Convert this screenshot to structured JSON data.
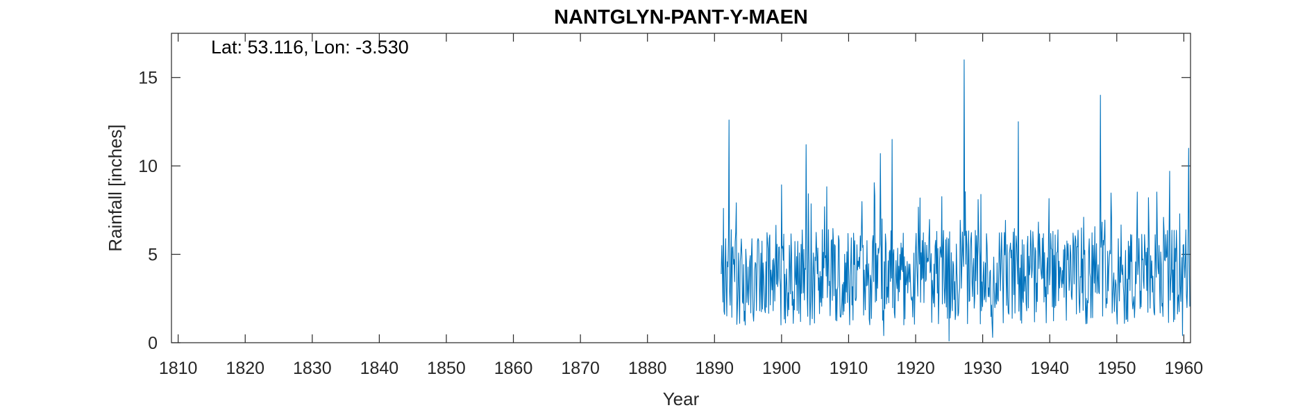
{
  "chart_data": {
    "type": "line",
    "title": "NANTGLYN-PANT-Y-MAEN",
    "annotation": "Lat: 53.116, Lon: -3.530",
    "xlabel": "Year",
    "ylabel": "Rainfall [inches]",
    "xlim": [
      1809,
      1961
    ],
    "ylim": [
      0,
      17.5
    ],
    "xticks": [
      1810,
      1820,
      1830,
      1840,
      1850,
      1860,
      1870,
      1880,
      1890,
      1900,
      1910,
      1920,
      1930,
      1940,
      1950,
      1960
    ],
    "yticks": [
      0,
      5,
      10,
      15
    ],
    "grid": false,
    "series": [
      {
        "color": "#0072bd",
        "data_start": 1891.0,
        "data_end": 1960.92,
        "step": 0.0833,
        "note_points": [
          [
            1891.1,
            5.5
          ],
          [
            1891.2,
            4.2
          ],
          [
            1891.3,
            7.6
          ],
          [
            1891.5,
            1.6
          ],
          [
            1892.2,
            12.6
          ],
          [
            1894.6,
            1.0
          ],
          [
            1903.7,
            11.2
          ],
          [
            1914.7,
            10.7
          ],
          [
            1915.2,
            0.4
          ],
          [
            1916.5,
            11.5
          ],
          [
            1925.0,
            0.1
          ],
          [
            1927.2,
            16.0
          ],
          [
            1931.5,
            0.3
          ],
          [
            1935.3,
            12.5
          ],
          [
            1947.6,
            14.0
          ],
          [
            1957.9,
            9.7
          ],
          [
            1959.8,
            0.4
          ],
          [
            1960.7,
            11.0
          ]
        ]
      }
    ]
  }
}
